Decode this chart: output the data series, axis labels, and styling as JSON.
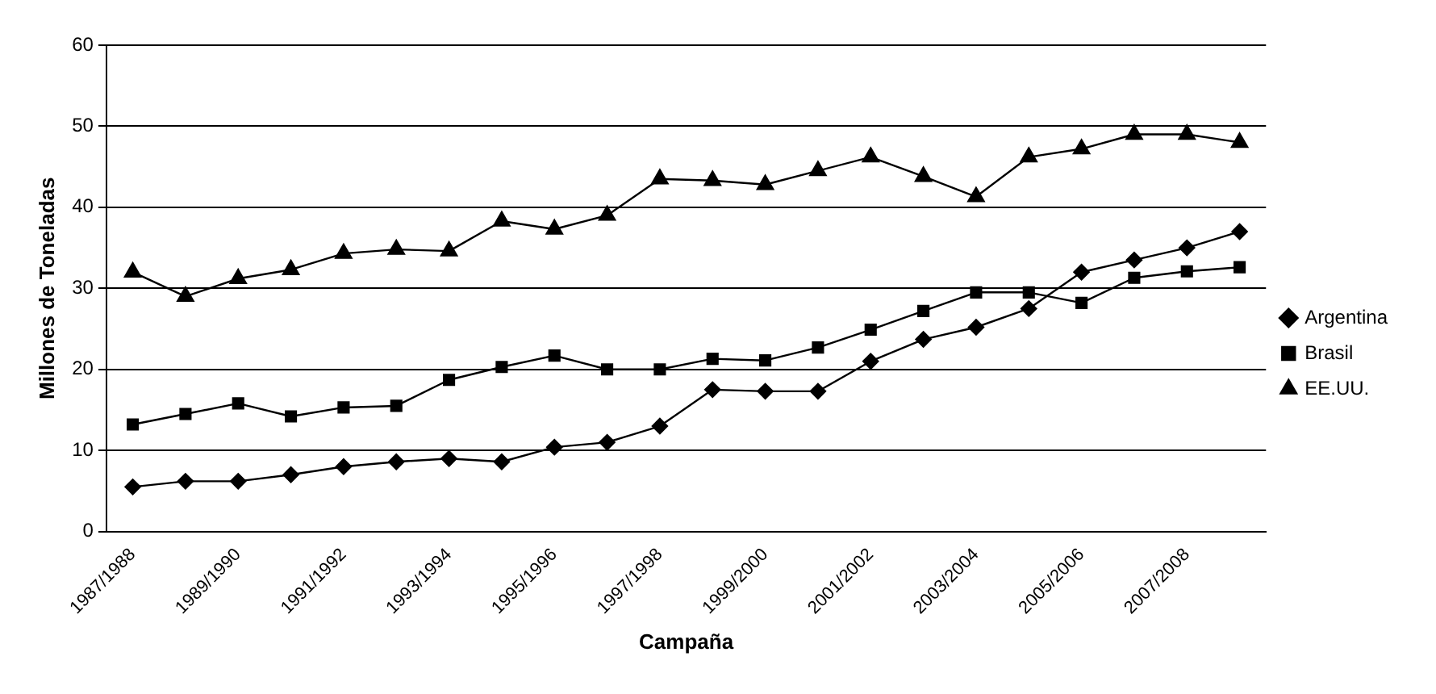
{
  "chart_data": {
    "type": "line",
    "xlabel": "Campaña",
    "ylabel": "Millones de Toneladas",
    "categories": [
      "1987/1988",
      null,
      "1989/1990",
      null,
      "1991/1992",
      null,
      "1993/1994",
      null,
      "1995/1996",
      null,
      "1997/1998",
      null,
      "1999/2000",
      null,
      "2001/2002",
      null,
      "2003/2004",
      null,
      "2005/2006",
      null,
      "2007/2008",
      null
    ],
    "series": [
      {
        "name": "Argentina",
        "color": "#000000",
        "marker": "diamond",
        "values": [
          5.5,
          6.2,
          6.2,
          7,
          8,
          8.6,
          9,
          8.6,
          10.4,
          11,
          13,
          17.5,
          17.3,
          17.3,
          21,
          23.7,
          25.2,
          27.5,
          32,
          33.5,
          35,
          37
        ]
      },
      {
        "name": "Brasil",
        "color": "#000000",
        "marker": "square",
        "values": [
          13.2,
          14.5,
          15.8,
          14.2,
          15.3,
          15.5,
          18.7,
          20.3,
          21.7,
          20,
          20,
          21.3,
          21.1,
          22.7,
          24.9,
          27.2,
          29.5,
          29.5,
          28.2,
          31.3,
          32.1,
          32.6
        ]
      },
      {
        "name": "EE.UU.",
        "color": "#000000",
        "marker": "triangle",
        "values": [
          32,
          29,
          31.2,
          32.3,
          34.3,
          34.8,
          34.6,
          38.3,
          37.3,
          39,
          43.5,
          43.3,
          42.8,
          44.5,
          46.2,
          43.8,
          41.3,
          46.2,
          47.2,
          49,
          49,
          48
        ]
      }
    ],
    "ylim": [
      0,
      60
    ],
    "yticks": [
      0,
      10,
      20,
      30,
      40,
      50,
      60
    ],
    "grid": "y",
    "legend": "right",
    "line_style": "solid"
  }
}
